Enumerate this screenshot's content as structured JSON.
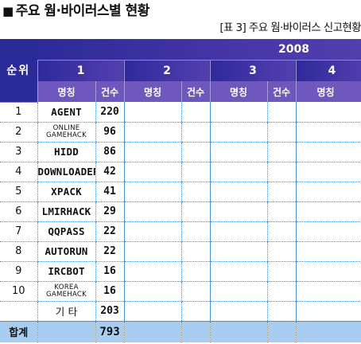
{
  "title": {
    "marker": "■",
    "text": "주요 웜·바이러스별 현황"
  },
  "caption": "[표 3] 주요 웜·바이러스 신고현황",
  "table": {
    "rank_header": "순위",
    "year": "2008",
    "months": [
      "1",
      "2",
      "3",
      "4"
    ],
    "sub_headers": {
      "name": "명칭",
      "count": "건수"
    },
    "rows": [
      {
        "rank": "1",
        "name": "AGENT",
        "count": "220"
      },
      {
        "rank": "2",
        "name": "ONLINE GAMEHACK",
        "count": "96",
        "small": true
      },
      {
        "rank": "3",
        "name": "HIDD",
        "count": "86"
      },
      {
        "rank": "4",
        "name": "DOWNLOADER",
        "count": "42"
      },
      {
        "rank": "5",
        "name": "XPACK",
        "count": "41"
      },
      {
        "rank": "6",
        "name": "LMIRHACK",
        "count": "29"
      },
      {
        "rank": "7",
        "name": "QQPASS",
        "count": "22"
      },
      {
        "rank": "8",
        "name": "AUTORUN",
        "count": "22"
      },
      {
        "rank": "9",
        "name": "IRCBOT",
        "count": "16"
      },
      {
        "rank": "10",
        "name": "KOREA GAMEHACK",
        "count": "16",
        "small": true
      }
    ],
    "etc": {
      "name": "기 타",
      "count": "203"
    },
    "total": {
      "label": "합계",
      "count": "793"
    }
  },
  "colors": {
    "header_dark": "#2d2a9a",
    "header_sub": "#6e58bd",
    "total_bg": "#a9cdf0",
    "grid_line": "#4a8fd0"
  }
}
